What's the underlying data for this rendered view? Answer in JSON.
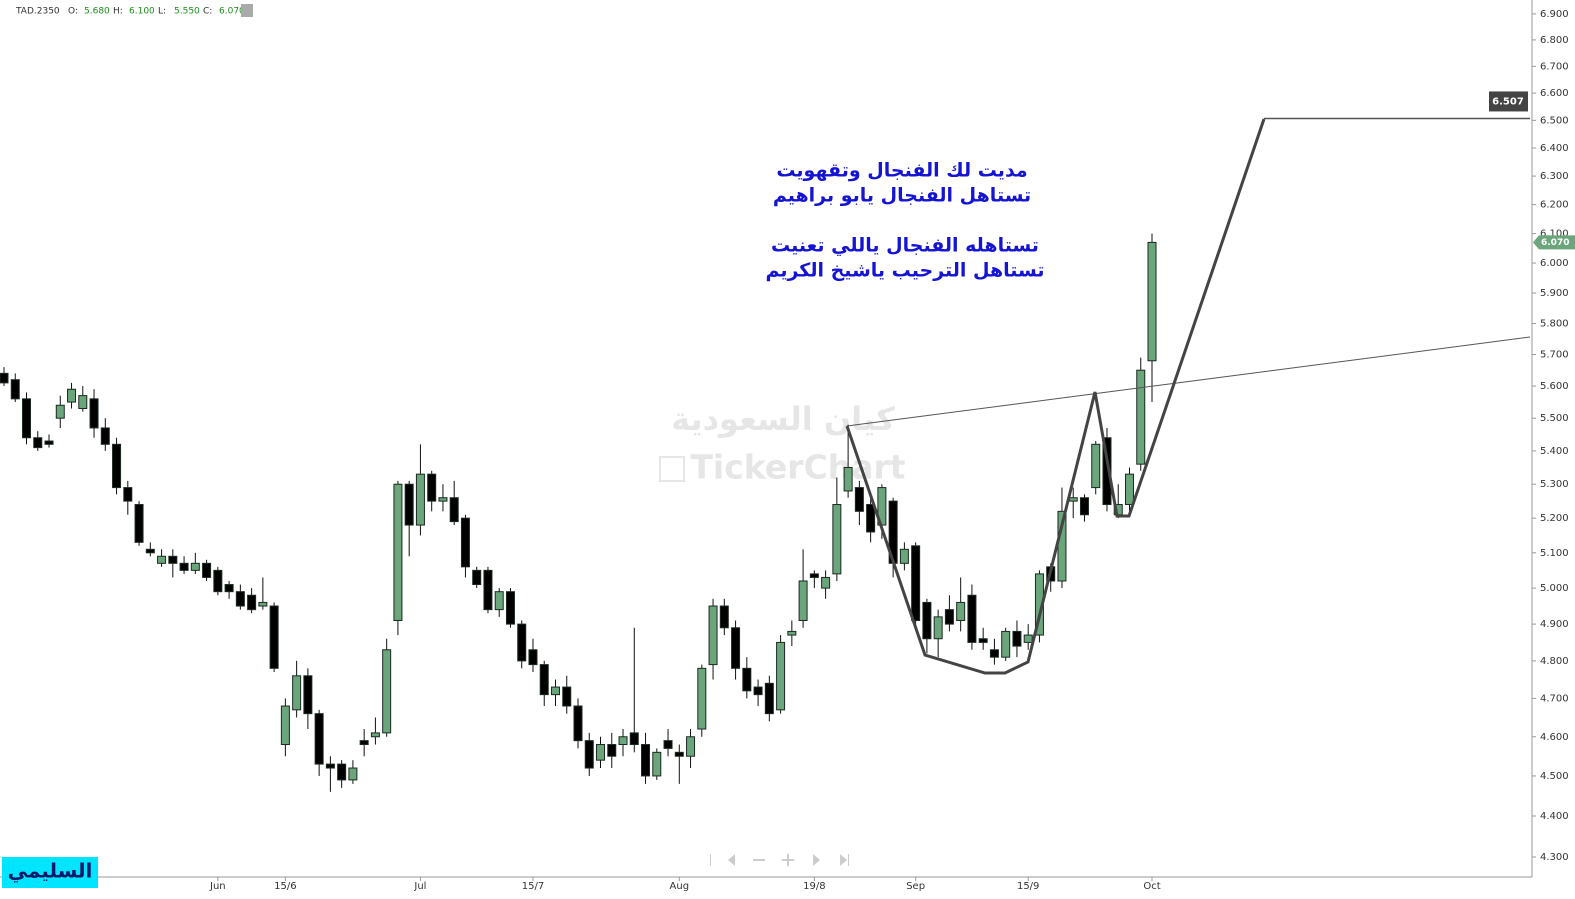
{
  "chart_data": {
    "type": "candlestick",
    "ohlc_legend": {
      "symbol": "TAD.2350",
      "labels": [
        "O:",
        "H:",
        "L:",
        "C:"
      ],
      "values": [
        "5.680",
        "6.100",
        "5.550",
        "6.070"
      ]
    },
    "categories": [
      null,
      null,
      null,
      null,
      null,
      null,
      null,
      null,
      null,
      null,
      null,
      null,
      null,
      null,
      null,
      null,
      null,
      null,
      null,
      "Jun",
      null,
      null,
      null,
      null,
      null,
      "15/6",
      null,
      null,
      null,
      null,
      null,
      null,
      null,
      null,
      null,
      null,
      null,
      "Jul",
      null,
      null,
      null,
      null,
      null,
      null,
      null,
      null,
      null,
      "15/7",
      null,
      null,
      null,
      null,
      null,
      null,
      null,
      null,
      null,
      null,
      null,
      null,
      "Aug",
      null,
      null,
      null,
      null,
      null,
      null,
      null,
      null,
      null,
      null,
      null,
      "19/8",
      null,
      null,
      null,
      null,
      null,
      null,
      null,
      null,
      "Sep",
      null,
      null,
      null,
      null,
      null,
      null,
      null,
      null,
      null,
      "15/9",
      null,
      null,
      null,
      null,
      null,
      null,
      null,
      null,
      null,
      null,
      "Oct"
    ],
    "open": [
      5.64,
      5.62,
      5.56,
      5.44,
      5.43,
      5.5,
      5.55,
      5.53,
      5.56,
      5.47,
      5.42,
      5.29,
      5.24,
      5.11,
      5.07,
      5.09,
      5.07,
      5.05,
      5.07,
      5.05,
      5.01,
      4.99,
      4.98,
      4.95,
      4.95,
      4.58,
      4.67,
      4.76,
      4.66,
      4.53,
      4.53,
      4.49,
      4.59,
      4.6,
      4.61,
      4.91,
      5.3,
      5.18,
      5.33,
      5.25,
      5.26,
      5.2,
      5.05,
      5.05,
      4.94,
      4.99,
      4.9,
      4.83,
      4.79,
      4.71,
      4.73,
      4.68,
      4.59,
      4.54,
      4.58,
      4.58,
      4.61,
      4.58,
      4.5,
      4.59,
      4.56,
      4.55,
      4.62,
      4.79,
      4.95,
      4.89,
      4.78,
      4.73,
      4.74,
      4.67,
      4.87,
      4.91,
      5.04,
      5.0,
      5.04,
      5.28,
      5.29,
      5.24,
      5.18,
      5.25,
      5.07,
      5.12,
      4.96,
      4.86,
      4.94,
      4.91,
      4.98,
      4.86,
      4.83,
      4.81,
      4.88,
      4.85,
      4.87,
      5.06,
      5.02,
      5.25,
      5.26,
      5.29,
      5.44,
      5.21,
      5.24,
      5.36,
      5.68
    ],
    "high": [
      5.66,
      5.64,
      5.58,
      5.46,
      5.45,
      5.57,
      5.61,
      5.6,
      5.59,
      5.5,
      5.44,
      5.31,
      5.25,
      5.13,
      5.11,
      5.11,
      5.09,
      5.1,
      5.08,
      5.06,
      5.02,
      5.01,
      5.0,
      5.03,
      4.96,
      4.7,
      4.8,
      4.78,
      4.67,
      4.55,
      4.54,
      4.54,
      4.62,
      4.65,
      4.86,
      5.31,
      5.31,
      5.42,
      5.34,
      5.3,
      5.31,
      5.21,
      5.06,
      5.06,
      5.0,
      5.0,
      4.91,
      4.86,
      4.8,
      4.75,
      4.76,
      4.7,
      4.61,
      4.6,
      4.61,
      4.62,
      4.89,
      4.61,
      4.57,
      4.62,
      4.58,
      4.62,
      4.79,
      4.97,
      4.97,
      4.91,
      4.81,
      4.75,
      4.76,
      4.87,
      4.91,
      5.11,
      5.05,
      5.05,
      5.32,
      5.48,
      5.31,
      5.27,
      5.3,
      5.26,
      5.13,
      5.13,
      4.97,
      4.94,
      4.98,
      5.03,
      5.01,
      4.89,
      4.86,
      4.89,
      4.91,
      4.9,
      5.05,
      5.07,
      5.29,
      5.29,
      5.27,
      5.43,
      5.47,
      5.3,
      5.35,
      5.69,
      6.1
    ],
    "low": [
      5.6,
      5.55,
      5.42,
      5.4,
      5.41,
      5.47,
      5.53,
      5.52,
      5.44,
      5.4,
      5.27,
      5.21,
      5.12,
      5.09,
      5.06,
      5.03,
      5.04,
      5.04,
      5.02,
      4.98,
      4.97,
      4.94,
      4.93,
      4.94,
      4.77,
      4.55,
      4.65,
      4.62,
      4.5,
      4.46,
      4.47,
      4.48,
      4.55,
      4.58,
      4.6,
      4.87,
      5.09,
      5.15,
      5.22,
      5.22,
      5.18,
      5.03,
      5.0,
      4.93,
      4.92,
      4.89,
      4.78,
      4.77,
      4.68,
      4.68,
      4.66,
      4.57,
      4.5,
      4.52,
      4.52,
      4.55,
      4.56,
      4.48,
      4.49,
      4.55,
      4.48,
      4.52,
      4.6,
      4.75,
      4.87,
      4.75,
      4.7,
      4.68,
      4.64,
      4.66,
      4.84,
      4.89,
      5.0,
      4.97,
      5.02,
      5.26,
      5.18,
      5.13,
      5.14,
      5.03,
      5.05,
      4.9,
      4.82,
      4.81,
      4.88,
      4.88,
      4.83,
      4.83,
      4.79,
      4.8,
      4.81,
      4.83,
      4.85,
      4.99,
      5.0,
      5.2,
      5.19,
      5.27,
      5.22,
      5.2,
      5.22,
      5.34,
      5.55
    ],
    "close": [
      5.61,
      5.56,
      5.44,
      5.41,
      5.42,
      5.54,
      5.59,
      5.57,
      5.47,
      5.42,
      5.29,
      5.25,
      5.13,
      5.1,
      5.09,
      5.07,
      5.05,
      5.07,
      5.03,
      4.99,
      4.99,
      4.95,
      4.94,
      4.96,
      4.78,
      4.68,
      4.76,
      4.66,
      4.53,
      4.52,
      4.49,
      4.52,
      4.58,
      4.61,
      4.83,
      5.3,
      5.18,
      5.33,
      5.25,
      5.26,
      5.19,
      5.06,
      5.01,
      4.94,
      4.99,
      4.9,
      4.8,
      4.79,
      4.71,
      4.73,
      4.68,
      4.59,
      4.52,
      4.58,
      4.55,
      4.6,
      4.58,
      4.5,
      4.56,
      4.57,
      4.55,
      4.6,
      4.78,
      4.95,
      4.89,
      4.78,
      4.72,
      4.71,
      4.66,
      4.85,
      4.88,
      5.02,
      5.03,
      5.03,
      5.24,
      5.35,
      5.22,
      5.16,
      5.29,
      5.07,
      5.11,
      4.91,
      4.86,
      4.92,
      4.9,
      4.96,
      4.85,
      4.85,
      4.81,
      4.88,
      4.84,
      4.87,
      5.04,
      5.02,
      5.22,
      5.26,
      5.21,
      5.42,
      5.24,
      5.24,
      5.33,
      5.65,
      6.07
    ],
    "up_color": "#6aa57c",
    "down_color": "#000000",
    "log": true,
    "ylim": [
      4.252,
      6.954
    ],
    "yticks": [
      {
        "value": 4.3,
        "label": "4.300"
      },
      {
        "value": 4.4,
        "label": "4.400"
      },
      {
        "value": 4.5,
        "label": "4.500"
      },
      {
        "value": 4.6,
        "label": "4.600"
      },
      {
        "value": 4.7,
        "label": "4.700"
      },
      {
        "value": 4.8,
        "label": "4.800"
      },
      {
        "value": 4.9,
        "label": "4.900"
      },
      {
        "value": 5.0,
        "label": "5.000"
      },
      {
        "value": 5.1,
        "label": "5.100"
      },
      {
        "value": 5.2,
        "label": "5.200"
      },
      {
        "value": 5.3,
        "label": "5.300"
      },
      {
        "value": 5.4,
        "label": "5.400"
      },
      {
        "value": 5.5,
        "label": "5.500"
      },
      {
        "value": 5.6,
        "label": "5.600"
      },
      {
        "value": 5.7,
        "label": "5.700"
      },
      {
        "value": 5.8,
        "label": "5.800"
      },
      {
        "value": 5.9,
        "label": "5.900"
      },
      {
        "value": 6.0,
        "label": "6.000"
      },
      {
        "value": 6.1,
        "label": "6.100"
      },
      {
        "value": 6.2,
        "label": "6.200"
      },
      {
        "value": 6.3,
        "label": "6.300"
      },
      {
        "value": 6.4,
        "label": "6.400"
      },
      {
        "value": 6.5,
        "label": "6.500"
      },
      {
        "value": 6.6,
        "label": "6.600"
      },
      {
        "value": 6.7,
        "label": "6.700"
      },
      {
        "value": 6.8,
        "label": "6.800"
      },
      {
        "value": 6.9,
        "label": "6.900"
      }
    ],
    "price_line": {
      "value": 6.507,
      "label": "6.507"
    },
    "last_price": {
      "value": 6.07,
      "label": "6.070"
    },
    "annotations": [
      "مديت لك الفنجال  وتقهويت",
      "تستاهل الفنجال يابو براهيم",
      "تستاهله الفنجال ياللي تعنيت",
      "تستاهل الترحيب ياشيخ الكريم"
    ],
    "watermark": [
      "كيان السعودية",
      "TickerChart"
    ],
    "logo": "السليمي"
  }
}
